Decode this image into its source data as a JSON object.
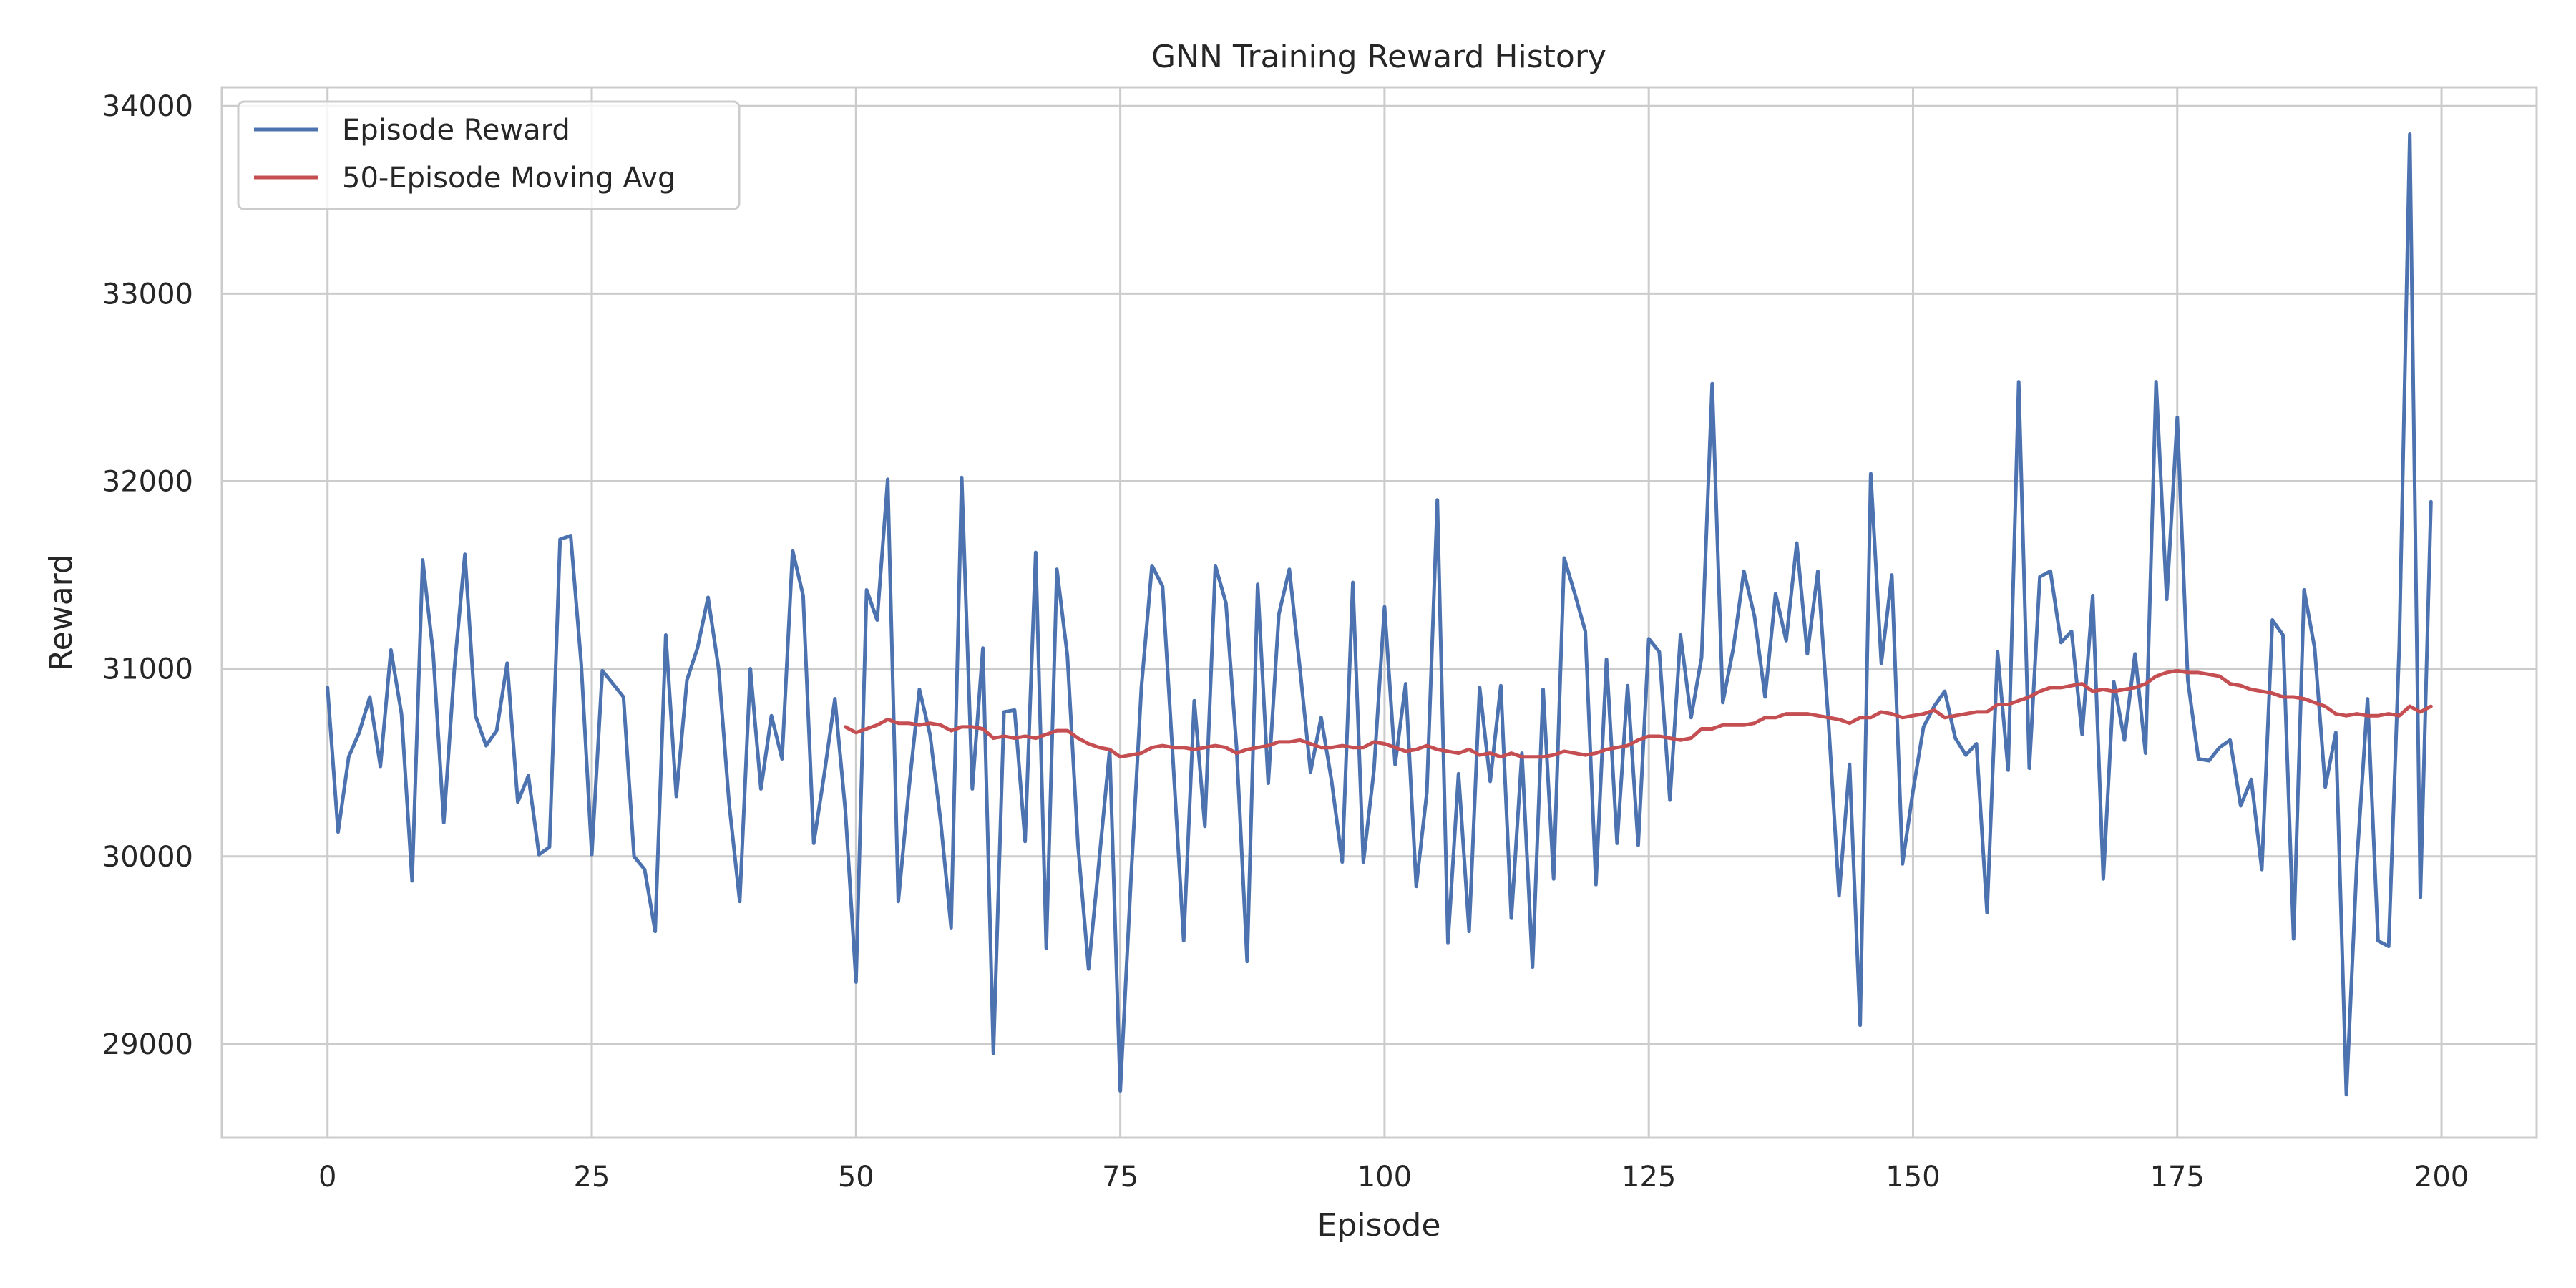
{
  "chart_data": {
    "type": "line",
    "title": "GNN Training Reward History",
    "xlabel": "Episode",
    "ylabel": "Reward",
    "xlim": [
      -10,
      209
    ],
    "ylim": [
      28500,
      34100
    ],
    "xticks": [
      0,
      25,
      50,
      75,
      100,
      125,
      150,
      175,
      200
    ],
    "yticks": [
      29000,
      30000,
      31000,
      32000,
      33000,
      34000
    ],
    "grid": true,
    "legend_position": "top-left",
    "series": [
      {
        "name": "Episode Reward",
        "color": "#4c72b0",
        "x_start": 0,
        "values": [
          30900,
          30130,
          30530,
          30660,
          30850,
          30480,
          31100,
          30760,
          29870,
          31580,
          31080,
          30180,
          31000,
          31610,
          30750,
          30590,
          30670,
          31030,
          30290,
          30430,
          30010,
          30050,
          31690,
          31710,
          31030,
          30010,
          30990,
          30920,
          30850,
          30000,
          29930,
          29600,
          31180,
          30320,
          30940,
          31110,
          31380,
          31000,
          30280,
          29760,
          31000,
          30360,
          30750,
          30520,
          31630,
          31390,
          30070,
          30440,
          30840,
          30240,
          29330,
          31420,
          31260,
          32010,
          29760,
          30360,
          30890,
          30650,
          30190,
          29620,
          32020,
          30360,
          31110,
          28950,
          30770,
          30780,
          30080,
          31620,
          29510,
          31530,
          31070,
          30060,
          29400,
          29980,
          30570,
          28750,
          29870,
          30900,
          31550,
          31440,
          30500,
          29550,
          30830,
          30160,
          31550,
          31350,
          30580,
          29440,
          31450,
          30390,
          31290,
          31530,
          31000,
          30450,
          30740,
          30400,
          29970,
          31460,
          29970,
          30460,
          31330,
          30490,
          30920,
          29840,
          30340,
          31900,
          29540,
          30440,
          29600,
          30900,
          30400,
          30910,
          29670,
          30550,
          29410,
          30890,
          29880,
          31590,
          31400,
          31200,
          29850,
          31050,
          30070,
          30910,
          30060,
          31160,
          31090,
          30300,
          31180,
          30740,
          31060,
          32520,
          30820,
          31110,
          31520,
          31280,
          30850,
          31400,
          31150,
          31670,
          31080,
          31520,
          30720,
          29790,
          30490,
          29100,
          32040,
          31030,
          31500,
          29960,
          30350,
          30690,
          30800,
          30880,
          30630,
          30540,
          30600,
          29700,
          31090,
          30460,
          32530,
          30470,
          31490,
          31520,
          31140,
          31200,
          30650,
          31390,
          29880,
          30930,
          30620,
          31080,
          30550,
          32530,
          31370,
          32340,
          30940,
          30520,
          30510,
          30580,
          30620,
          30270,
          30410,
          29930,
          31260,
          31180,
          29560,
          31420,
          31110,
          30370,
          30660,
          28730,
          29980,
          30840,
          29550,
          29520,
          31120,
          33850,
          29780,
          31890
        ]
      },
      {
        "name": "50-Episode Moving Avg",
        "color": "#c44e52",
        "x_start": 49,
        "values": [
          30690,
          30660,
          30680,
          30700,
          30730,
          30710,
          30710,
          30700,
          30710,
          30700,
          30670,
          30690,
          30690,
          30680,
          30630,
          30640,
          30630,
          30640,
          30630,
          30650,
          30670,
          30670,
          30630,
          30600,
          30580,
          30570,
          30530,
          30540,
          30550,
          30580,
          30590,
          30580,
          30580,
          30570,
          30580,
          30590,
          30580,
          30550,
          30570,
          30580,
          30590,
          30610,
          30610,
          30620,
          30600,
          30580,
          30580,
          30590,
          30580,
          30580,
          30610,
          30600,
          30580,
          30560,
          30570,
          30590,
          30570,
          30560,
          30550,
          30570,
          30540,
          30550,
          30530,
          30550,
          30530,
          30530,
          30530,
          30540,
          30560,
          30550,
          30540,
          30550,
          30570,
          30580,
          30590,
          30620,
          30640,
          30640,
          30630,
          30620,
          30630,
          30680,
          30680,
          30700,
          30700,
          30700,
          30710,
          30740,
          30740,
          30760,
          30760,
          30760,
          30750,
          30740,
          30730,
          30710,
          30740,
          30740,
          30770,
          30760,
          30740,
          30750,
          30760,
          30780,
          30740,
          30750,
          30760,
          30770,
          30770,
          30810,
          30810,
          30830,
          30850,
          30880,
          30900,
          30900,
          30910,
          30920,
          30880,
          30890,
          30880,
          30890,
          30900,
          30920,
          30960,
          30980,
          30990,
          30980,
          30980,
          30970,
          30960,
          30920,
          30910,
          30890,
          30880,
          30870,
          30850,
          30850,
          30840,
          30820,
          30800,
          30760,
          30750,
          30760,
          30750,
          30750,
          30760,
          30750,
          30800,
          30770,
          30800
        ]
      }
    ]
  }
}
